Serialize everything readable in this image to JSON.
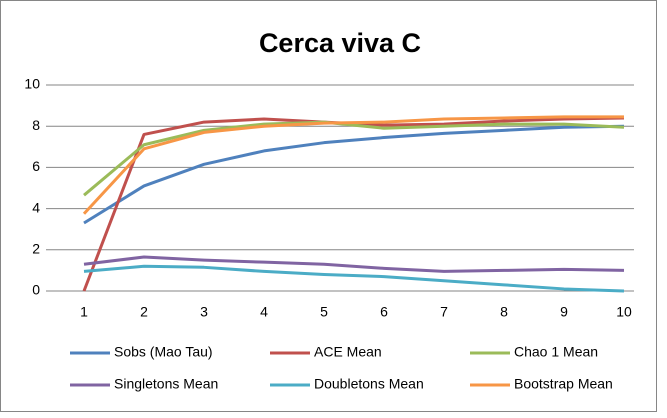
{
  "chart_data": {
    "type": "line",
    "title": "Cerca viva C",
    "categories": [
      1,
      2,
      3,
      4,
      5,
      6,
      7,
      8,
      9,
      10
    ],
    "series": [
      {
        "name": "Sobs (Mao Tau)",
        "color": "#4F81BD",
        "values": [
          3.3,
          5.1,
          6.15,
          6.8,
          7.2,
          7.45,
          7.65,
          7.8,
          7.95,
          8.0
        ]
      },
      {
        "name": "ACE Mean",
        "color": "#C0504D",
        "values": [
          0,
          7.6,
          8.2,
          8.35,
          8.2,
          8.05,
          8.1,
          8.25,
          8.35,
          8.4
        ]
      },
      {
        "name": "Chao 1 Mean",
        "color": "#9BBB59",
        "values": [
          4.65,
          7.1,
          7.8,
          8.1,
          8.2,
          7.9,
          8.0,
          8.1,
          8.1,
          7.95
        ]
      },
      {
        "name": "Singletons Mean",
        "color": "#8064A2",
        "values": [
          1.3,
          1.65,
          1.5,
          1.4,
          1.3,
          1.1,
          0.95,
          1.0,
          1.05,
          1.0
        ]
      },
      {
        "name": "Doubletons Mean",
        "color": "#4BACC6",
        "values": [
          0.95,
          1.2,
          1.15,
          0.95,
          0.8,
          0.7,
          0.5,
          0.3,
          0.1,
          0.0
        ]
      },
      {
        "name": "Bootstrap Mean",
        "color": "#F79646",
        "values": [
          3.75,
          6.9,
          7.7,
          8.0,
          8.15,
          8.2,
          8.35,
          8.4,
          8.45,
          8.45
        ]
      }
    ],
    "ylim": [
      0,
      10
    ],
    "yticks": [
      0,
      2,
      4,
      6,
      8,
      10
    ],
    "grid": true,
    "legend": "bottom"
  }
}
